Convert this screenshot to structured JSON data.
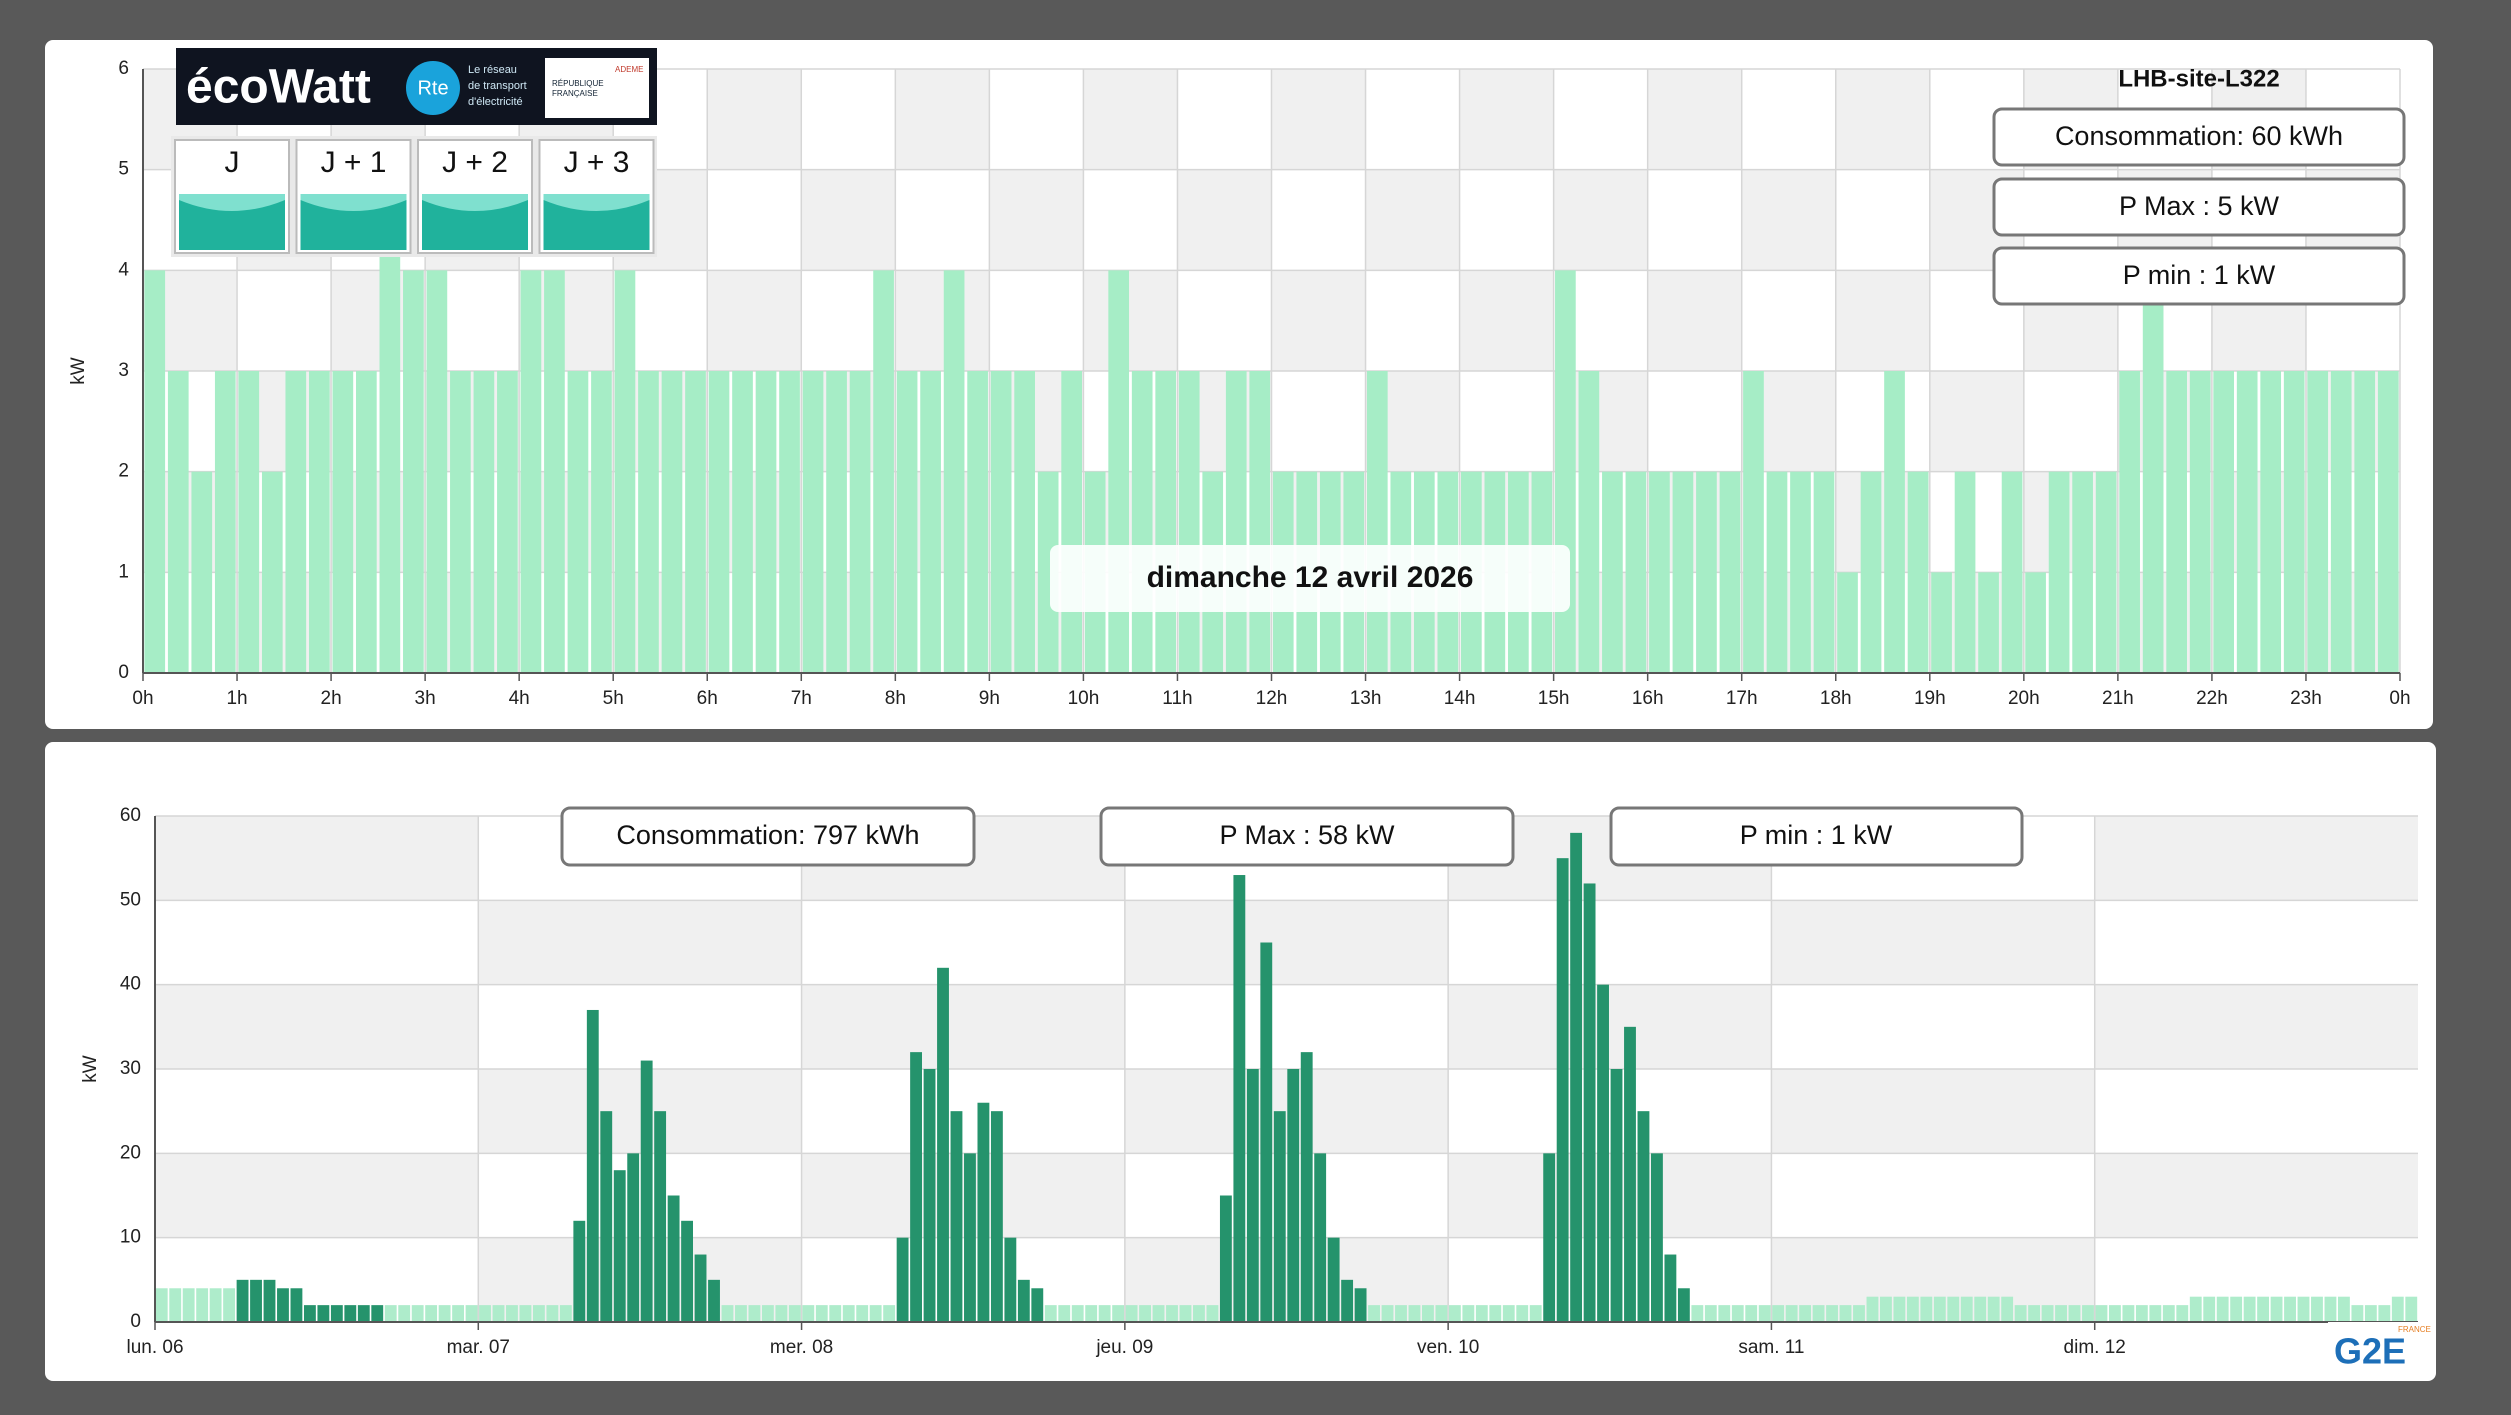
{
  "ecowatt": {
    "brand": "écoWatt",
    "rte": "Rte",
    "rte_text": [
      "Le réseau",
      "de transport",
      "d'électricité"
    ],
    "flag": [
      "RÉPUBLIQUE",
      "FRANÇAISE"
    ],
    "ademe": "ADEME",
    "days": [
      "J",
      "J + 1",
      "J + 2",
      "J + 3"
    ]
  },
  "site": "LHB-site-L322",
  "day_summary": {
    "consumption": "Consommation: 60 kWh",
    "pmax": "P Max :  5 kW",
    "pmin": "P min : 1 kW"
  },
  "date_label": "dimanche 12 avril 2026",
  "week_summary": {
    "consumption": "Consommation: 797 kWh",
    "pmax": "P Max :  58 kW",
    "pmin": "P min : 1 kW"
  },
  "logo": {
    "name": "G2E",
    "country": "FRANCE"
  },
  "chart_data": [
    {
      "type": "bar",
      "y_label": "kW",
      "grid": true,
      "xlim": [
        0,
        24
      ],
      "ylim": [
        0,
        6
      ],
      "yticks": [
        0,
        1,
        2,
        3,
        4,
        5,
        6
      ],
      "xticks": [
        {
          "value": 0,
          "label": "0h"
        },
        {
          "value": 1,
          "label": "1h"
        },
        {
          "value": 2,
          "label": "2h"
        },
        {
          "value": 3,
          "label": "3h"
        },
        {
          "value": 4,
          "label": "4h"
        },
        {
          "value": 5,
          "label": "5h"
        },
        {
          "value": 6,
          "label": "6h"
        },
        {
          "value": 7,
          "label": "7h"
        },
        {
          "value": 8,
          "label": "8h"
        },
        {
          "value": 9,
          "label": "9h"
        },
        {
          "value": 10,
          "label": "10h"
        },
        {
          "value": 11,
          "label": "11h"
        },
        {
          "value": 12,
          "label": "12h"
        },
        {
          "value": 13,
          "label": "13h"
        },
        {
          "value": 14,
          "label": "14h"
        },
        {
          "value": 15,
          "label": "15h"
        },
        {
          "value": 16,
          "label": "16h"
        },
        {
          "value": 17,
          "label": "17h"
        },
        {
          "value": 18,
          "label": "18h"
        },
        {
          "value": 19,
          "label": "19h"
        },
        {
          "value": 20,
          "label": "20h"
        },
        {
          "value": 21,
          "label": "21h"
        },
        {
          "value": 22,
          "label": "22h"
        },
        {
          "value": 23,
          "label": "23h"
        },
        {
          "value": 24,
          "label": "0h"
        }
      ],
      "x": [
        0,
        0.25,
        0.5,
        0.75,
        1,
        1.25,
        1.5,
        1.75,
        2,
        2.25,
        2.5,
        2.75,
        3,
        3.25,
        3.5,
        3.75,
        4,
        4.25,
        4.5,
        4.75,
        5,
        5.25,
        5.5,
        5.75,
        6,
        6.25,
        6.5,
        6.75,
        7,
        7.25,
        7.5,
        7.75,
        8,
        8.25,
        8.5,
        8.75,
        9,
        9.25,
        9.5,
        9.75,
        10,
        10.25,
        10.5,
        10.75,
        11,
        11.25,
        11.5,
        11.75,
        12,
        12.25,
        12.5,
        12.75,
        13,
        13.25,
        13.5,
        13.75,
        14,
        14.25,
        14.5,
        14.75,
        15,
        15.25,
        15.5,
        15.75,
        16,
        16.25,
        16.5,
        16.75,
        17,
        17.25,
        17.5,
        17.75,
        18,
        18.25,
        18.5,
        18.75,
        19,
        19.25,
        19.5,
        19.75,
        20,
        20.25,
        20.5,
        20.75,
        21,
        21.25,
        21.5,
        21.75,
        22,
        22.25,
        22.5,
        22.75,
        23,
        23.25,
        23.5,
        23.75
      ],
      "series": [
        {
          "color": "#a6edc6",
          "values": [
            4,
            3,
            2,
            3,
            3,
            2,
            3,
            3,
            3,
            3,
            5,
            4,
            4,
            3,
            3,
            3,
            4,
            4,
            3,
            3,
            4,
            3,
            3,
            3,
            3,
            3,
            3,
            3,
            3,
            3,
            3,
            4,
            3,
            3,
            4,
            3,
            3,
            3,
            2,
            3,
            2,
            4,
            3,
            3,
            3,
            2,
            3,
            3,
            2,
            2,
            2,
            2,
            3,
            2,
            2,
            2,
            2,
            2,
            2,
            2,
            4,
            3,
            2,
            2,
            2,
            2,
            2,
            2,
            3,
            2,
            2,
            2,
            1,
            2,
            3,
            2,
            1,
            2,
            1,
            2,
            1,
            2,
            2,
            2,
            3,
            4,
            3,
            3,
            3,
            3,
            3,
            3,
            3,
            3,
            3,
            3
          ]
        }
      ]
    },
    {
      "type": "bar",
      "y_label": "kW",
      "grid": true,
      "xlim": [
        0,
        168
      ],
      "ylim": [
        0,
        60
      ],
      "yticks": [
        0,
        10,
        20,
        30,
        40,
        50,
        60
      ],
      "xticks": [
        {
          "value": 0,
          "label": "lun. 06"
        },
        {
          "value": 24,
          "label": "mar. 07"
        },
        {
          "value": 48,
          "label": "mer. 08"
        },
        {
          "value": 72,
          "label": "jeu. 09"
        },
        {
          "value": 96,
          "label": "ven. 10"
        },
        {
          "value": 120,
          "label": "sam. 11"
        },
        {
          "value": 144,
          "label": "dim. 12"
        }
      ],
      "x": [
        0,
        1,
        2,
        3,
        4,
        5,
        6,
        7,
        8,
        9,
        10,
        11,
        12,
        13,
        14,
        15,
        16,
        17,
        18,
        19,
        20,
        21,
        22,
        23,
        24,
        25,
        26,
        27,
        28,
        29,
        30,
        31,
        32,
        33,
        34,
        35,
        36,
        37,
        38,
        39,
        40,
        41,
        42,
        43,
        44,
        45,
        46,
        47,
        48,
        49,
        50,
        51,
        52,
        53,
        54,
        55,
        56,
        57,
        58,
        59,
        60,
        61,
        62,
        63,
        64,
        65,
        66,
        67,
        68,
        69,
        70,
        71,
        72,
        73,
        74,
        75,
        76,
        77,
        78,
        79,
        80,
        81,
        82,
        83,
        84,
        85,
        86,
        87,
        88,
        89,
        90,
        91,
        92,
        93,
        94,
        95,
        96,
        97,
        98,
        99,
        100,
        101,
        102,
        103,
        104,
        105,
        106,
        107,
        108,
        109,
        110,
        111,
        112,
        113,
        114,
        115,
        116,
        117,
        118,
        119,
        120,
        121,
        122,
        123,
        124,
        125,
        126,
        127,
        128,
        129,
        130,
        131,
        132,
        133,
        134,
        135,
        136,
        137,
        138,
        139,
        140,
        141,
        142,
        143,
        144,
        145,
        146,
        147,
        148,
        149,
        150,
        151,
        152,
        153,
        154,
        155,
        156,
        157,
        158,
        159,
        160,
        161,
        162,
        163,
        164,
        165,
        166,
        167
      ],
      "series": [
        {
          "color": "#aeeccb",
          "values": [
            4,
            4,
            4,
            4,
            4,
            4,
            null,
            null,
            null,
            null,
            null,
            null,
            null,
            null,
            null,
            null,
            null,
            2,
            2,
            2,
            2,
            2,
            2,
            2,
            2,
            2,
            2,
            2,
            2,
            2,
            2,
            null,
            null,
            null,
            null,
            null,
            null,
            null,
            null,
            null,
            null,
            null,
            2,
            2,
            2,
            2,
            2,
            2,
            2,
            2,
            2,
            2,
            2,
            2,
            2,
            null,
            null,
            null,
            null,
            null,
            null,
            null,
            null,
            null,
            null,
            null,
            2,
            2,
            2,
            2,
            2,
            2,
            2,
            2,
            2,
            2,
            2,
            2,
            2,
            null,
            null,
            null,
            null,
            null,
            null,
            null,
            null,
            null,
            null,
            null,
            2,
            2,
            2,
            2,
            2,
            2,
            2,
            2,
            2,
            2,
            2,
            2,
            2,
            null,
            null,
            null,
            null,
            null,
            null,
            null,
            null,
            null,
            null,
            null,
            2,
            2,
            2,
            2,
            2,
            2,
            2,
            2,
            2,
            2,
            2,
            2,
            2,
            3,
            3,
            3,
            3,
            3,
            3,
            3,
            3,
            3,
            3,
            3,
            2,
            2,
            2,
            2,
            2,
            2,
            2,
            2,
            2,
            2,
            2,
            2,
            2,
            3,
            3,
            3,
            3,
            3,
            3,
            3,
            3,
            3,
            3,
            3,
            3,
            2,
            2,
            2,
            3,
            3
          ]
        },
        {
          "color": "#25936c",
          "values": [
            null,
            null,
            null,
            null,
            null,
            null,
            5,
            5,
            5,
            4,
            4,
            2,
            2,
            2,
            2,
            2,
            2,
            null,
            null,
            null,
            null,
            null,
            null,
            null,
            null,
            null,
            null,
            null,
            null,
            null,
            null,
            12,
            37,
            25,
            18,
            20,
            31,
            25,
            15,
            12,
            8,
            5,
            null,
            null,
            null,
            null,
            null,
            null,
            null,
            null,
            null,
            null,
            null,
            null,
            null,
            10,
            32,
            30,
            42,
            25,
            20,
            26,
            25,
            10,
            5,
            4,
            null,
            null,
            null,
            null,
            null,
            null,
            null,
            null,
            null,
            null,
            null,
            null,
            null,
            15,
            53,
            30,
            45,
            25,
            30,
            32,
            20,
            10,
            5,
            4,
            null,
            null,
            null,
            null,
            null,
            null,
            null,
            null,
            null,
            null,
            null,
            null,
            null,
            20,
            55,
            58,
            52,
            40,
            30,
            35,
            25,
            20,
            8,
            4,
            null,
            null,
            null,
            null,
            null,
            null,
            null,
            null,
            null,
            null,
            null,
            null,
            null,
            null,
            null,
            null,
            null,
            null,
            null,
            null,
            null,
            null,
            null,
            null,
            null,
            null,
            null,
            null,
            null,
            null,
            null,
            null,
            null,
            null,
            null,
            null,
            null,
            null,
            null,
            null,
            null,
            null,
            null,
            null,
            null,
            null,
            null,
            null,
            null,
            null,
            null,
            null,
            null,
            null
          ]
        }
      ]
    }
  ]
}
